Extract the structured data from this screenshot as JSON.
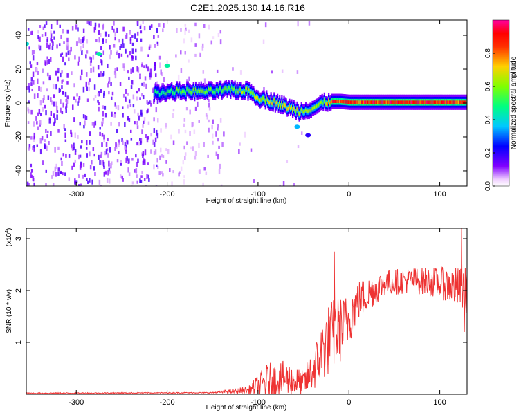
{
  "title": "C2E1.2025.130.14.16.R16",
  "chart_data": [
    {
      "type": "heatmap",
      "title": "C2E1.2025.130.14.16.R16",
      "xlabel": "Height of straight line (km)",
      "ylabel": "Frequency (Hz)",
      "xlim": [
        -355,
        130
      ],
      "ylim": [
        -49,
        49
      ],
      "x_ticks": [
        -300,
        -200,
        -100,
        0,
        100
      ],
      "y_ticks": [
        -40,
        -20,
        0,
        20,
        40
      ],
      "colorbar": {
        "label": "Normalized spectral amplitude",
        "range": [
          0,
          1
        ],
        "ticks": [
          0.0,
          0.2,
          0.4,
          0.6,
          0.8
        ],
        "colors": [
          "#ffffff",
          "#8000ff",
          "#0000ff",
          "#00c8ff",
          "#00ff80",
          "#80ff00",
          "#ffd000",
          "#ff6000",
          "#ff0000",
          "#ff00a0"
        ]
      },
      "ridge": [
        {
          "x": -215,
          "y": 6,
          "amp": 0.45
        },
        {
          "x": -190,
          "y": 7,
          "amp": 0.55
        },
        {
          "x": -170,
          "y": 7,
          "amp": 0.6
        },
        {
          "x": -150,
          "y": 7,
          "amp": 0.55
        },
        {
          "x": -130,
          "y": 8,
          "amp": 0.6
        },
        {
          "x": -110,
          "y": 7,
          "amp": 0.65
        },
        {
          "x": -100,
          "y": 3,
          "amp": 0.65
        },
        {
          "x": -85,
          "y": 1,
          "amp": 0.7
        },
        {
          "x": -70,
          "y": -2,
          "amp": 0.7
        },
        {
          "x": -55,
          "y": -5,
          "amp": 0.65
        },
        {
          "x": -40,
          "y": -3,
          "amp": 0.6
        },
        {
          "x": -30,
          "y": 0,
          "amp": 0.6
        },
        {
          "x": -20,
          "y": 1,
          "amp": 0.9
        },
        {
          "x": -10,
          "y": 1,
          "amp": 0.85
        },
        {
          "x": 0,
          "y": 0.5,
          "amp": 0.85
        },
        {
          "x": 20,
          "y": 0.5,
          "amp": 0.9
        },
        {
          "x": 40,
          "y": 0.5,
          "amp": 0.9
        },
        {
          "x": 60,
          "y": 0.5,
          "amp": 0.9
        },
        {
          "x": 80,
          "y": 0.5,
          "amp": 0.9
        },
        {
          "x": 100,
          "y": 0.5,
          "amp": 0.9
        },
        {
          "x": 130,
          "y": 0.5,
          "amp": 0.85
        }
      ],
      "notes_visible": []
    },
    {
      "type": "line",
      "xlabel": "Height of straight line (km)",
      "ylabel": "SNR (10 * v/v)",
      "y_multiplier": "(x10",
      "y_multiplier_exp": "4",
      "xlim": [
        -355,
        130
      ],
      "ylim": [
        0,
        3.2
      ],
      "x_ticks": [
        -300,
        -200,
        -100,
        0,
        100
      ],
      "y_ticks": [
        1,
        2,
        3
      ],
      "color": "#ee3333",
      "envelope": [
        {
          "x": -355,
          "base": 0.02,
          "spread": 0.01
        },
        {
          "x": -150,
          "base": 0.03,
          "spread": 0.01
        },
        {
          "x": -110,
          "base": 0.08,
          "spread": 0.08
        },
        {
          "x": -90,
          "base": 0.25,
          "spread": 0.35
        },
        {
          "x": -70,
          "base": 0.3,
          "spread": 0.35
        },
        {
          "x": -50,
          "base": 0.2,
          "spread": 0.25
        },
        {
          "x": -35,
          "base": 0.6,
          "spread": 0.5
        },
        {
          "x": -25,
          "base": 1.0,
          "spread": 0.7
        },
        {
          "x": -15,
          "base": 1.2,
          "spread": 0.7
        },
        {
          "x": -5,
          "base": 1.3,
          "spread": 0.6
        },
        {
          "x": 10,
          "base": 1.8,
          "spread": 0.4
        },
        {
          "x": 40,
          "base": 2.15,
          "spread": 0.25
        },
        {
          "x": 70,
          "base": 2.2,
          "spread": 0.25
        },
        {
          "x": 100,
          "base": 2.15,
          "spread": 0.3
        },
        {
          "x": 130,
          "base": 2.0,
          "spread": 0.45
        }
      ],
      "peaks": [
        {
          "x": -16,
          "y": 2.75
        },
        {
          "x": 124,
          "y": 3.2
        },
        {
          "x": 127,
          "y": 1.2
        }
      ]
    }
  ]
}
